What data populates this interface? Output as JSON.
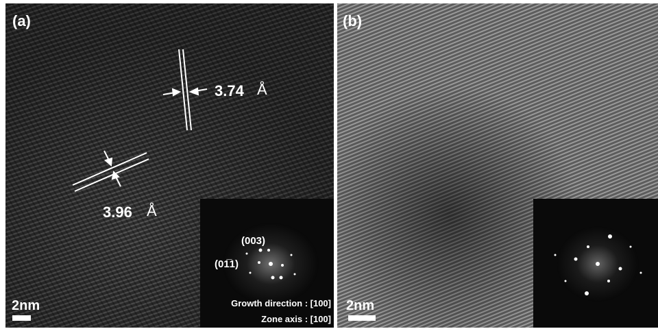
{
  "panel_a": {
    "label": "(a)",
    "spacing_1": "3.74",
    "spacing_2": "3.96",
    "unit": "Å",
    "fft_labels": [
      "(003)",
      "(01̅1)"
    ],
    "growth_direction": "Growth direction : [100]",
    "zone_axis": "Zone axis : [100]",
    "scale_bar": "2nm"
  },
  "panel_b": {
    "label": "(b)",
    "scale_bar": "2nm"
  }
}
